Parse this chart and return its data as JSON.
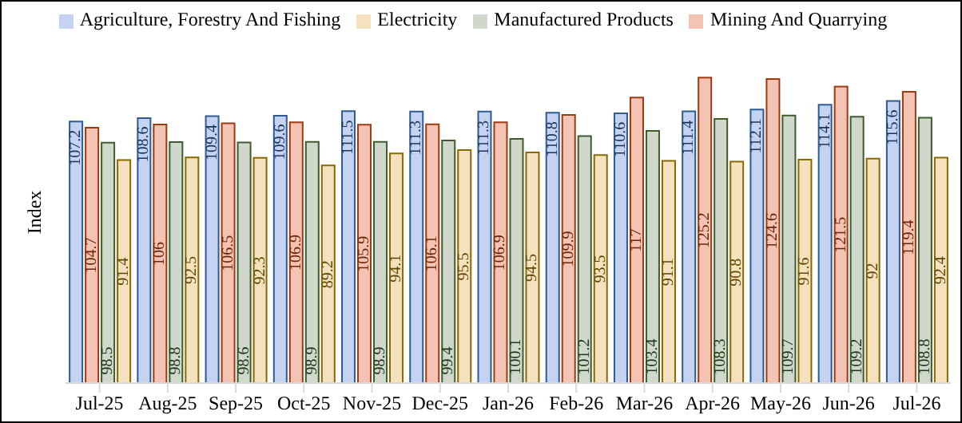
{
  "chart_data": {
    "type": "bar",
    "ylabel": "Index",
    "categories": [
      "Jul-25",
      "Aug-25",
      "Sep-25",
      "Oct-25",
      "Nov-25",
      "Dec-25",
      "Jan-26",
      "Feb-26",
      "Mar-26",
      "Apr-26",
      "May-26",
      "Jun-26",
      "Jul-26"
    ],
    "series": [
      {
        "name": "Agriculture, Forestry And Fishing",
        "color": "#c5d3f3",
        "values": [
          107.2,
          108.6,
          109.4,
          109.6,
          111.5,
          111.3,
          111.3,
          110.8,
          110.6,
          111.4,
          112.1,
          114.1,
          115.6
        ]
      },
      {
        "name": "Mining And Quarrying",
        "color": "#f5c3b3",
        "values": [
          104.7,
          106,
          106.5,
          106.9,
          105.9,
          106.1,
          106.9,
          109.9,
          117,
          125.2,
          124.6,
          121.5,
          119.4
        ]
      },
      {
        "name": "Manufactured Products",
        "color": "#d0d8cc",
        "values": [
          98.5,
          98.8,
          98.6,
          98.9,
          98.9,
          99.4,
          100.1,
          101.2,
          103.4,
          108.3,
          109.7,
          109.2,
          108.8
        ]
      },
      {
        "name": "Electricity",
        "color": "#f5e1bd",
        "values": [
          91.4,
          92.5,
          92.3,
          89.2,
          94.1,
          95.5,
          94.5,
          93.5,
          91.1,
          90.8,
          91.6,
          92,
          92.4
        ]
      }
    ],
    "data_labels": true,
    "legend": "top",
    "grid": false,
    "tick_labels": "x"
  }
}
